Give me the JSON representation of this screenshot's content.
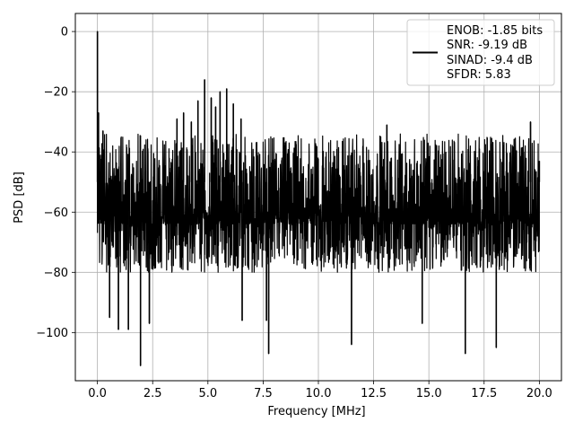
{
  "chart_data": {
    "type": "line",
    "title": "",
    "xlabel": "Frequency [MHz]",
    "ylabel": "PSD [dB]",
    "xlim": [
      -1.0,
      21.0
    ],
    "ylim": [
      -116.0,
      6.0
    ],
    "x_ticks": [
      0.0,
      2.5,
      5.0,
      7.5,
      10.0,
      12.5,
      15.0,
      17.5,
      20.0
    ],
    "x_tick_labels": [
      "0.0",
      "2.5",
      "5.0",
      "7.5",
      "10.0",
      "12.5",
      "15.0",
      "17.5",
      "20.0"
    ],
    "y_ticks": [
      0,
      -20,
      -40,
      -60,
      -80,
      -100
    ],
    "y_tick_labels": [
      "0",
      "−20",
      "−40",
      "−60",
      "−80",
      "−100"
    ],
    "grid": true,
    "legend_position": "top-right",
    "legend_lines": [
      "ENOB: -1.85 bits",
      "SNR: -9.19 dB",
      "SINAD: -9.4 dB",
      "SFDR: 5.83"
    ],
    "series": [
      {
        "color": "#000000",
        "x_range": [
          0.0,
          20.0
        ],
        "noise_floor_band": [
          -80,
          -34
        ],
        "points": [
          {
            "x": 0.0,
            "y": 0
          },
          {
            "x": 0.05,
            "y": -27
          },
          {
            "x": 0.25,
            "y": -33
          },
          {
            "x": 0.55,
            "y": -95
          },
          {
            "x": 0.95,
            "y": -99
          },
          {
            "x": 1.4,
            "y": -99
          },
          {
            "x": 1.95,
            "y": -111
          },
          {
            "x": 2.35,
            "y": -97
          },
          {
            "x": 3.6,
            "y": -29
          },
          {
            "x": 3.9,
            "y": -27
          },
          {
            "x": 4.25,
            "y": -30
          },
          {
            "x": 4.55,
            "y": -23
          },
          {
            "x": 4.85,
            "y": -16
          },
          {
            "x": 5.15,
            "y": -22
          },
          {
            "x": 5.35,
            "y": -25
          },
          {
            "x": 5.55,
            "y": -20
          },
          {
            "x": 5.85,
            "y": -19
          },
          {
            "x": 6.15,
            "y": -24
          },
          {
            "x": 6.5,
            "y": -29
          },
          {
            "x": 6.55,
            "y": -96
          },
          {
            "x": 7.75,
            "y": -107
          },
          {
            "x": 7.65,
            "y": -96
          },
          {
            "x": 11.5,
            "y": -104
          },
          {
            "x": 13.1,
            "y": -31
          },
          {
            "x": 14.7,
            "y": -97
          },
          {
            "x": 16.65,
            "y": -107
          },
          {
            "x": 18.05,
            "y": -105
          },
          {
            "x": 19.6,
            "y": -30
          },
          {
            "x": 20.0,
            "y": -43
          }
        ]
      }
    ]
  }
}
